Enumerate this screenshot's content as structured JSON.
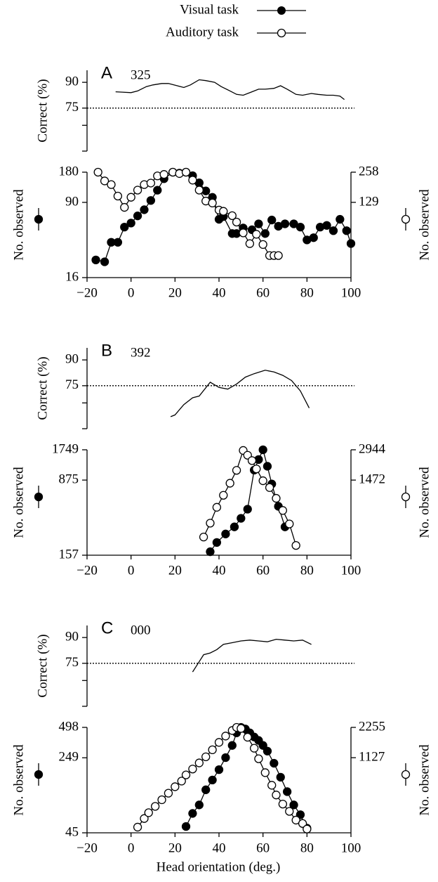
{
  "chart_data": [
    {
      "type": "line",
      "panel_label": "A",
      "annotation": "325",
      "ylabel": "Correct (%)",
      "xlim": [
        -20,
        100
      ],
      "ylim": [
        50,
        97
      ],
      "yticks": [
        90,
        75
      ],
      "minor_yticks": [
        65,
        50
      ],
      "reference_line": 75,
      "series": [
        {
          "color": "#000000",
          "x": [
            -7,
            -4,
            0,
            3,
            7,
            10,
            14,
            17,
            21,
            24,
            27,
            31,
            34,
            38,
            41,
            45,
            48,
            51,
            55,
            58,
            61,
            65,
            68,
            71,
            75,
            78,
            82,
            85,
            89,
            92,
            95,
            97
          ],
          "values": [
            84.5,
            84.3,
            84,
            85,
            87.5,
            88.5,
            89.3,
            89.3,
            88,
            87,
            88.5,
            91.5,
            91,
            90,
            87.5,
            85,
            83,
            82.5,
            84.5,
            86,
            86,
            86.5,
            88,
            86,
            83,
            82.5,
            83.5,
            83,
            82.5,
            82.5,
            82,
            80
          ]
        }
      ]
    },
    {
      "type": "line",
      "ylog": true,
      "ylabel": "No. observed",
      "y2label": "No. observed",
      "xlim": [
        -20,
        100
      ],
      "xticks": [
        {
          "value": -20,
          "label": "−20"
        },
        0,
        20,
        40,
        60,
        80,
        100
      ],
      "ylim": [
        16,
        180
      ],
      "yticks": [
        180,
        90,
        16
      ],
      "y2lim": [
        22.9,
        258
      ],
      "y2ticks": [
        258,
        129
      ],
      "series": [
        {
          "name": "Visual task",
          "color": "#000000",
          "marker_fill": "#000000",
          "x": [
            -16,
            -12,
            -9,
            -6,
            -3,
            0,
            3,
            6,
            9,
            12,
            15,
            19,
            22,
            25,
            28,
            31,
            34,
            37,
            40,
            42,
            46,
            48,
            51,
            55,
            58,
            61,
            64,
            67,
            70,
            74,
            77,
            80,
            83,
            86,
            89,
            92,
            95,
            98,
            100
          ],
          "values": [
            24,
            23,
            36,
            36,
            51,
            56,
            66,
            76,
            94,
            119,
            155,
            180,
            176,
            180,
            166,
            141,
            117,
            101,
            61,
            65,
            44,
            44,
            50,
            48,
            55,
            44,
            60,
            52,
            55,
            55,
            51,
            38,
            40,
            51,
            53,
            47,
            61,
            47,
            35
          ]
        },
        {
          "name": "Auditory task",
          "color": "#000000",
          "marker_fill": "#ffffff",
          "axis": "y2",
          "x": [
            -15,
            -12,
            -9,
            -6,
            -3,
            0,
            3,
            6,
            9,
            12,
            15,
            19,
            22,
            25,
            28,
            31,
            34,
            37,
            40,
            42,
            46,
            48,
            51,
            54,
            57,
            60,
            63,
            65,
            67
          ],
          "values": [
            258,
            211,
            194,
            149,
            115,
            145,
            171,
            194,
            201,
            237,
            245,
            258,
            250,
            258,
            215,
            171,
            133,
            127,
            108,
            105,
            95,
            82,
            64,
            50,
            62,
            49,
            38,
            38,
            38
          ]
        }
      ]
    },
    {
      "type": "line",
      "panel_label": "B",
      "annotation": "392",
      "ylabel": "Correct (%)",
      "xlim": [
        -20,
        100
      ],
      "ylim": [
        50,
        97
      ],
      "yticks": [
        90,
        75
      ],
      "minor_yticks": [
        65,
        50
      ],
      "reference_line": 75,
      "series": [
        {
          "color": "#000000",
          "x": [
            18,
            20,
            24,
            28,
            31,
            36,
            40,
            44,
            48,
            52,
            56,
            61,
            65,
            69,
            73,
            77,
            81
          ],
          "values": [
            57,
            58,
            64,
            68,
            69,
            77,
            74,
            73,
            76,
            80,
            82,
            84,
            83,
            81,
            78,
            72,
            62
          ]
        }
      ]
    },
    {
      "type": "line",
      "ylog": true,
      "ylabel": "No. observed",
      "y2label": "No. observed",
      "xlim": [
        -20,
        100
      ],
      "xticks": [
        {
          "value": -20,
          "label": "−20"
        },
        0,
        20,
        40,
        60,
        80,
        100
      ],
      "ylim": [
        157,
        1749
      ],
      "yticks": [
        1749,
        875,
        157
      ],
      "y2lim": [
        264,
        2944
      ],
      "y2ticks": [
        2944,
        1472
      ],
      "series": [
        {
          "name": "Visual task",
          "color": "#000000",
          "marker_fill": "#000000",
          "x": [
            36,
            39,
            43,
            47,
            50,
            53,
            56,
            58,
            60,
            62,
            64,
            67,
            70
          ],
          "values": [
            170,
            210,
            255,
            300,
            365,
            450,
            1100,
            1400,
            1749,
            1200,
            800,
            480,
            300
          ]
        },
        {
          "name": "Auditory task",
          "color": "#000000",
          "marker_fill": "#ffffff",
          "axis": "y2",
          "x": [
            33,
            36,
            39,
            42,
            45,
            48,
            51,
            53,
            55,
            57,
            60,
            63,
            66,
            69,
            72,
            75
          ],
          "values": [
            400,
            550,
            790,
            1040,
            1370,
            1840,
            2900,
            2600,
            2300,
            1900,
            1450,
            1240,
            970,
            735,
            540,
            330
          ]
        }
      ]
    },
    {
      "type": "line",
      "panel_label": "C",
      "annotation": "000",
      "ylabel": "Correct (%)",
      "xlim": [
        -20,
        100
      ],
      "ylim": [
        50,
        97
      ],
      "yticks": [
        90,
        75
      ],
      "minor_yticks": [
        65,
        50
      ],
      "reference_line": 75,
      "series": [
        {
          "color": "#000000",
          "x": [
            28,
            30,
            33,
            36,
            39,
            42,
            46,
            50,
            54,
            58,
            62,
            66,
            70,
            74,
            78,
            82
          ],
          "values": [
            70,
            74,
            80,
            81,
            83,
            86,
            87,
            88,
            88.5,
            88,
            87.5,
            89,
            88.5,
            88,
            88.5,
            86
          ]
        }
      ]
    },
    {
      "type": "line",
      "ylog": true,
      "ylabel": "No. observed",
      "y2label": "No. observed",
      "xlabel": "Head orientation (deg.)",
      "xlim": [
        -20,
        100
      ],
      "xticks": [
        {
          "value": -20,
          "label": "−20"
        },
        0,
        20,
        40,
        60,
        80,
        100
      ],
      "ylim": [
        45,
        498
      ],
      "yticks": [
        498,
        249,
        45
      ],
      "y2lim": [
        202,
        2255
      ],
      "y2ticks": [
        2255,
        1127
      ],
      "series": [
        {
          "name": "Visual task",
          "color": "#000000",
          "marker_fill": "#000000",
          "x": [
            25,
            28,
            31,
            34,
            37,
            40,
            43,
            46,
            48,
            50,
            52,
            54,
            56,
            58,
            60,
            62,
            65,
            68,
            71,
            74,
            77,
            80
          ],
          "values": [
            52,
            70,
            85,
            120,
            150,
            190,
            250,
            330,
            440,
            498,
            480,
            440,
            400,
            370,
            330,
            290,
            220,
            160,
            115,
            85,
            68,
            50
          ]
        },
        {
          "name": "Auditory task",
          "color": "#000000",
          "marker_fill": "#ffffff",
          "axis": "y2",
          "x": [
            3,
            6,
            8,
            11,
            14,
            17,
            20,
            23,
            25,
            28,
            31,
            34,
            37,
            40,
            43,
            46,
            48,
            50,
            53,
            56,
            58,
            61,
            64,
            66,
            69,
            72,
            75,
            78,
            80
          ],
          "values": [
            230,
            280,
            320,
            370,
            430,
            500,
            580,
            660,
            760,
            870,
            1000,
            1150,
            1350,
            1600,
            1850,
            2100,
            2255,
            2200,
            1800,
            1400,
            1100,
            800,
            600,
            480,
            390,
            330,
            270,
            250,
            220
          ]
        }
      ]
    }
  ]
}
